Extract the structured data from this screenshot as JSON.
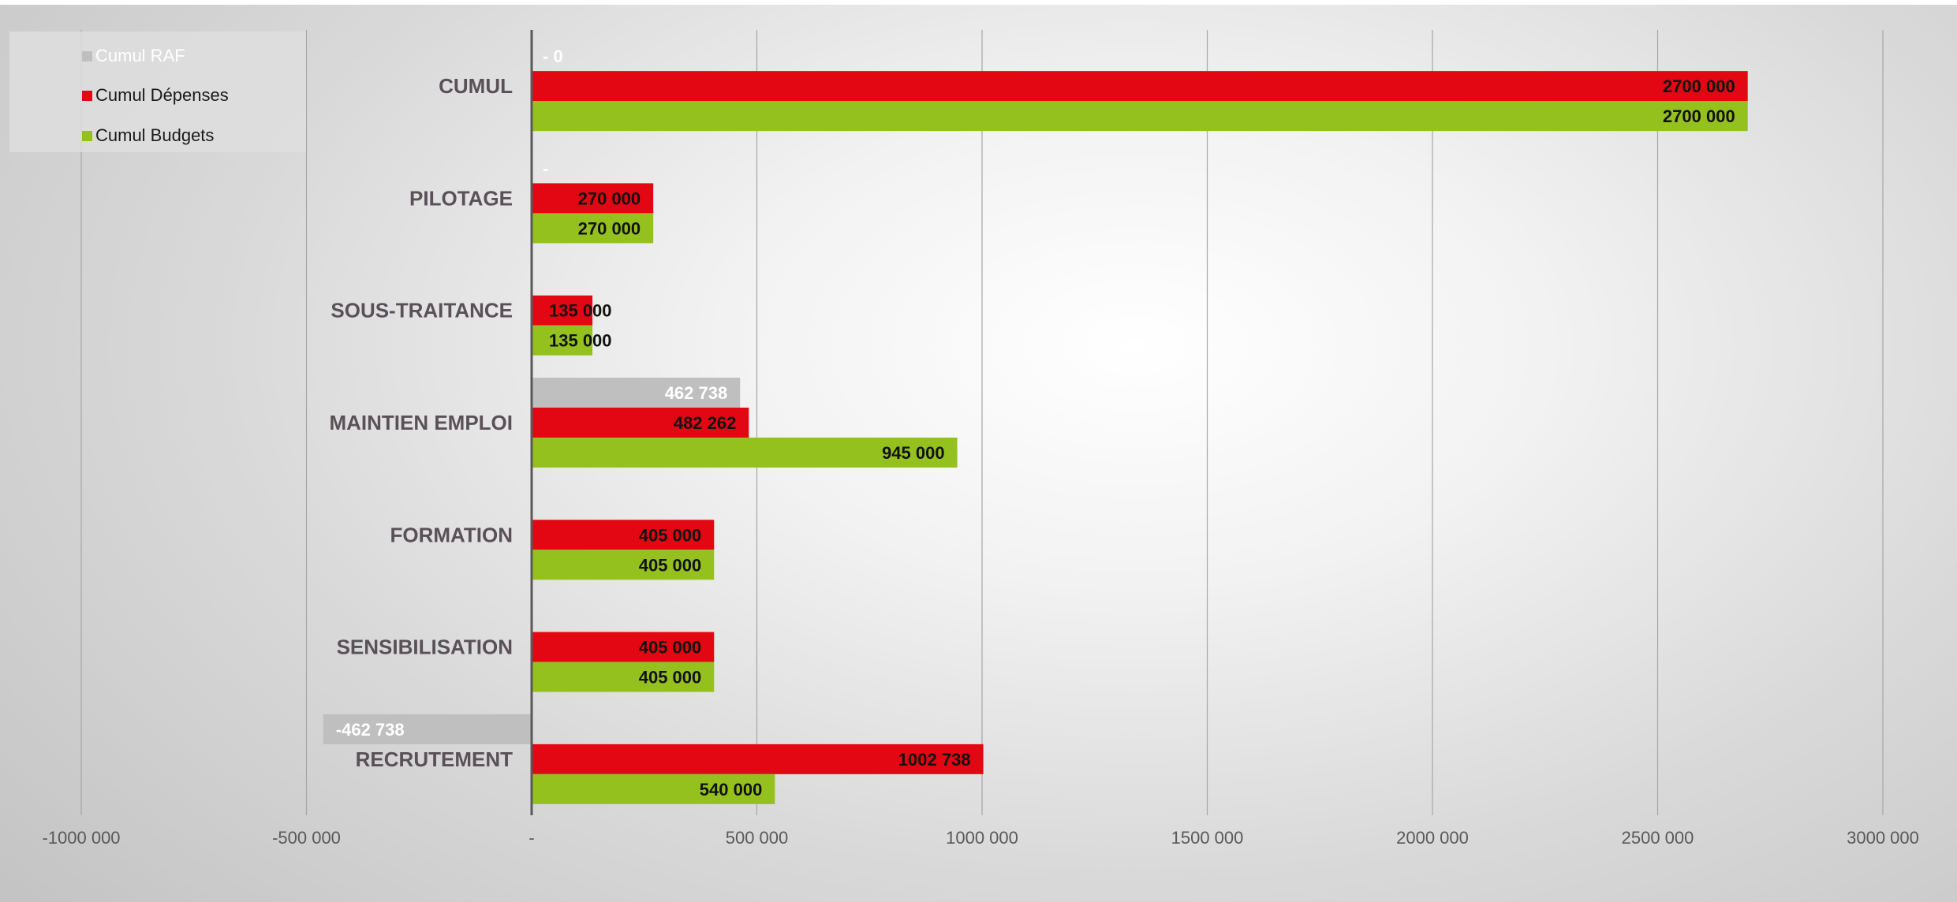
{
  "chart_data": {
    "type": "bar",
    "orientation": "horizontal",
    "title": "",
    "xlabel": "",
    "ylabel": "",
    "xlim": [
      -1000000,
      3000000
    ],
    "x_ticks": [
      {
        "value": -1000000,
        "label": "-1000 000"
      },
      {
        "value": -500000,
        "label": "-500 000"
      },
      {
        "value": 0,
        "label": "-"
      },
      {
        "value": 500000,
        "label": "500 000"
      },
      {
        "value": 1000000,
        "label": "1000 000"
      },
      {
        "value": 1500000,
        "label": "1500 000"
      },
      {
        "value": 2000000,
        "label": "2000 000"
      },
      {
        "value": 2500000,
        "label": "2500 000"
      },
      {
        "value": 3000000,
        "label": "3000 000"
      }
    ],
    "grid": true,
    "legend_position": "top-left",
    "categories": [
      "CUMUL",
      "PILOTAGE",
      "SOUS-TRAITANCE",
      "MAINTIEN EMPLOI",
      "FORMATION",
      "SENSIBILISATION",
      "RECRUTEMENT"
    ],
    "series": [
      {
        "name": "Cumul RAF",
        "color": "#bfbfbf",
        "label_color": "#ffffff",
        "values": [
          0,
          0,
          0,
          462738,
          0,
          0,
          -462738
        ],
        "labels": [
          "- 0",
          "-",
          "",
          "462 738",
          "",
          "",
          "-462 738"
        ]
      },
      {
        "name": "Cumul Dépenses",
        "color": "#e30613",
        "label_color": "#111111",
        "values": [
          2700000,
          270000,
          135000,
          482262,
          405000,
          405000,
          1002738
        ],
        "labels": [
          "2700 000",
          "270 000",
          "135 000",
          "482 262",
          "405 000",
          "405 000",
          "1002 738"
        ]
      },
      {
        "name": "Cumul Budgets",
        "color": "#95c11f",
        "label_color": "#111111",
        "values": [
          2700000,
          270000,
          135000,
          945000,
          405000,
          405000,
          540000
        ],
        "labels": [
          "2700 000",
          "270 000",
          "135 000",
          "945 000",
          "405 000",
          "405 000",
          "540 000"
        ]
      }
    ]
  },
  "legend": {
    "items": [
      {
        "label": "Cumul RAF",
        "color": "#bfbfbf"
      },
      {
        "label": "Cumul Dépenses",
        "color": "#e30613"
      },
      {
        "label": "Cumul Budgets",
        "color": "#95c11f"
      }
    ]
  }
}
